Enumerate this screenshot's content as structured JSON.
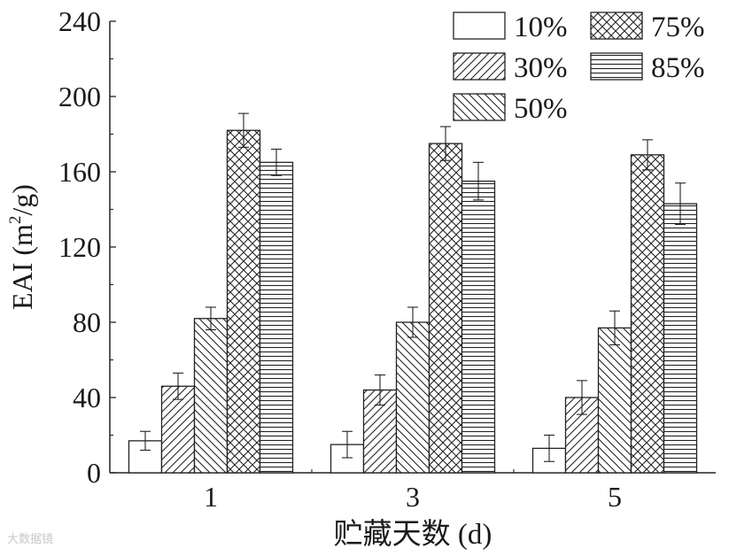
{
  "chart_data": {
    "type": "bar",
    "title": "",
    "xlabel": "贮藏天数 (d)",
    "ylabel": "EAI (m²/g)",
    "ylabel_main": "EAI (m",
    "ylabel_sup": "2",
    "ylabel_end": "/g)",
    "categories": [
      "1",
      "3",
      "5"
    ],
    "ylim": [
      0,
      240
    ],
    "yticks": [
      0,
      40,
      80,
      120,
      160,
      200,
      240
    ],
    "grid": false,
    "legend_position": "top-right",
    "series": [
      {
        "name": "10%",
        "pattern": "none",
        "values": [
          17,
          15,
          13
        ],
        "errors": [
          5,
          7,
          7
        ]
      },
      {
        "name": "30%",
        "pattern": "diag-up",
        "values": [
          46,
          44,
          40
        ],
        "errors": [
          7,
          8,
          9
        ]
      },
      {
        "name": "50%",
        "pattern": "diag-down",
        "values": [
          82,
          80,
          77
        ],
        "errors": [
          6,
          8,
          9
        ]
      },
      {
        "name": "75%",
        "pattern": "crosshatch",
        "values": [
          182,
          175,
          169
        ],
        "errors": [
          9,
          9,
          8
        ]
      },
      {
        "name": "85%",
        "pattern": "horizontal",
        "values": [
          165,
          155,
          143
        ],
        "errors": [
          7,
          10,
          11
        ]
      }
    ]
  },
  "watermark": "大数据镜"
}
